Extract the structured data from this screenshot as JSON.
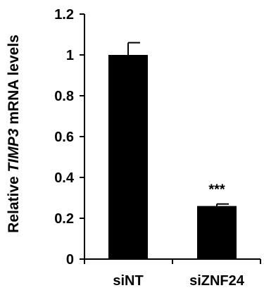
{
  "chart_data": {
    "type": "bar",
    "categories": [
      "siNT",
      "siZNF24"
    ],
    "values": [
      1.0,
      0.26
    ],
    "error": [
      0.06,
      0.01
    ],
    "annotations": [
      "",
      "***"
    ],
    "ylabel_parts": [
      "Relative ",
      "TIMP3",
      " mRNA levels"
    ],
    "ylim": [
      0,
      1.2
    ],
    "yticks": [
      "0",
      "0.2",
      "0.4",
      "0.6",
      "0.8",
      "1",
      "1.2"
    ],
    "bar_color": "#000000",
    "grid": false,
    "legend": "none"
  }
}
